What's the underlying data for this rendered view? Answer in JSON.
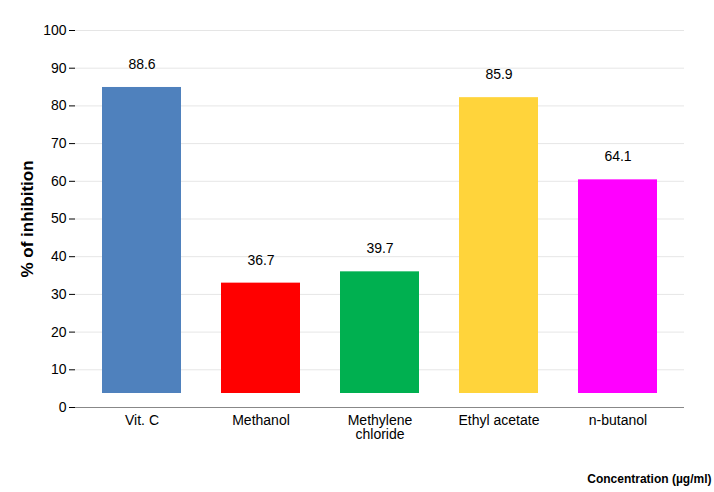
{
  "chart_data": {
    "type": "bar",
    "categories": [
      "Vit. C",
      "Methanol",
      "Methylene chloride",
      "Ethyl acetate",
      "n-butanol"
    ],
    "values": [
      88.6,
      36.7,
      39.7,
      85.9,
      64.1
    ],
    "colors": [
      "#4f81bd",
      "#ff0000",
      "#00b050",
      "#ffd43b",
      "#ff00ff"
    ],
    "y_label": "% of inhibition",
    "x_label": "Concentration (µg/ml)",
    "ylim": [
      0,
      100
    ],
    "yticks": [
      0,
      10,
      20,
      30,
      40,
      50,
      60,
      70,
      80,
      90,
      100
    ],
    "grid": true,
    "data_labels": true
  }
}
